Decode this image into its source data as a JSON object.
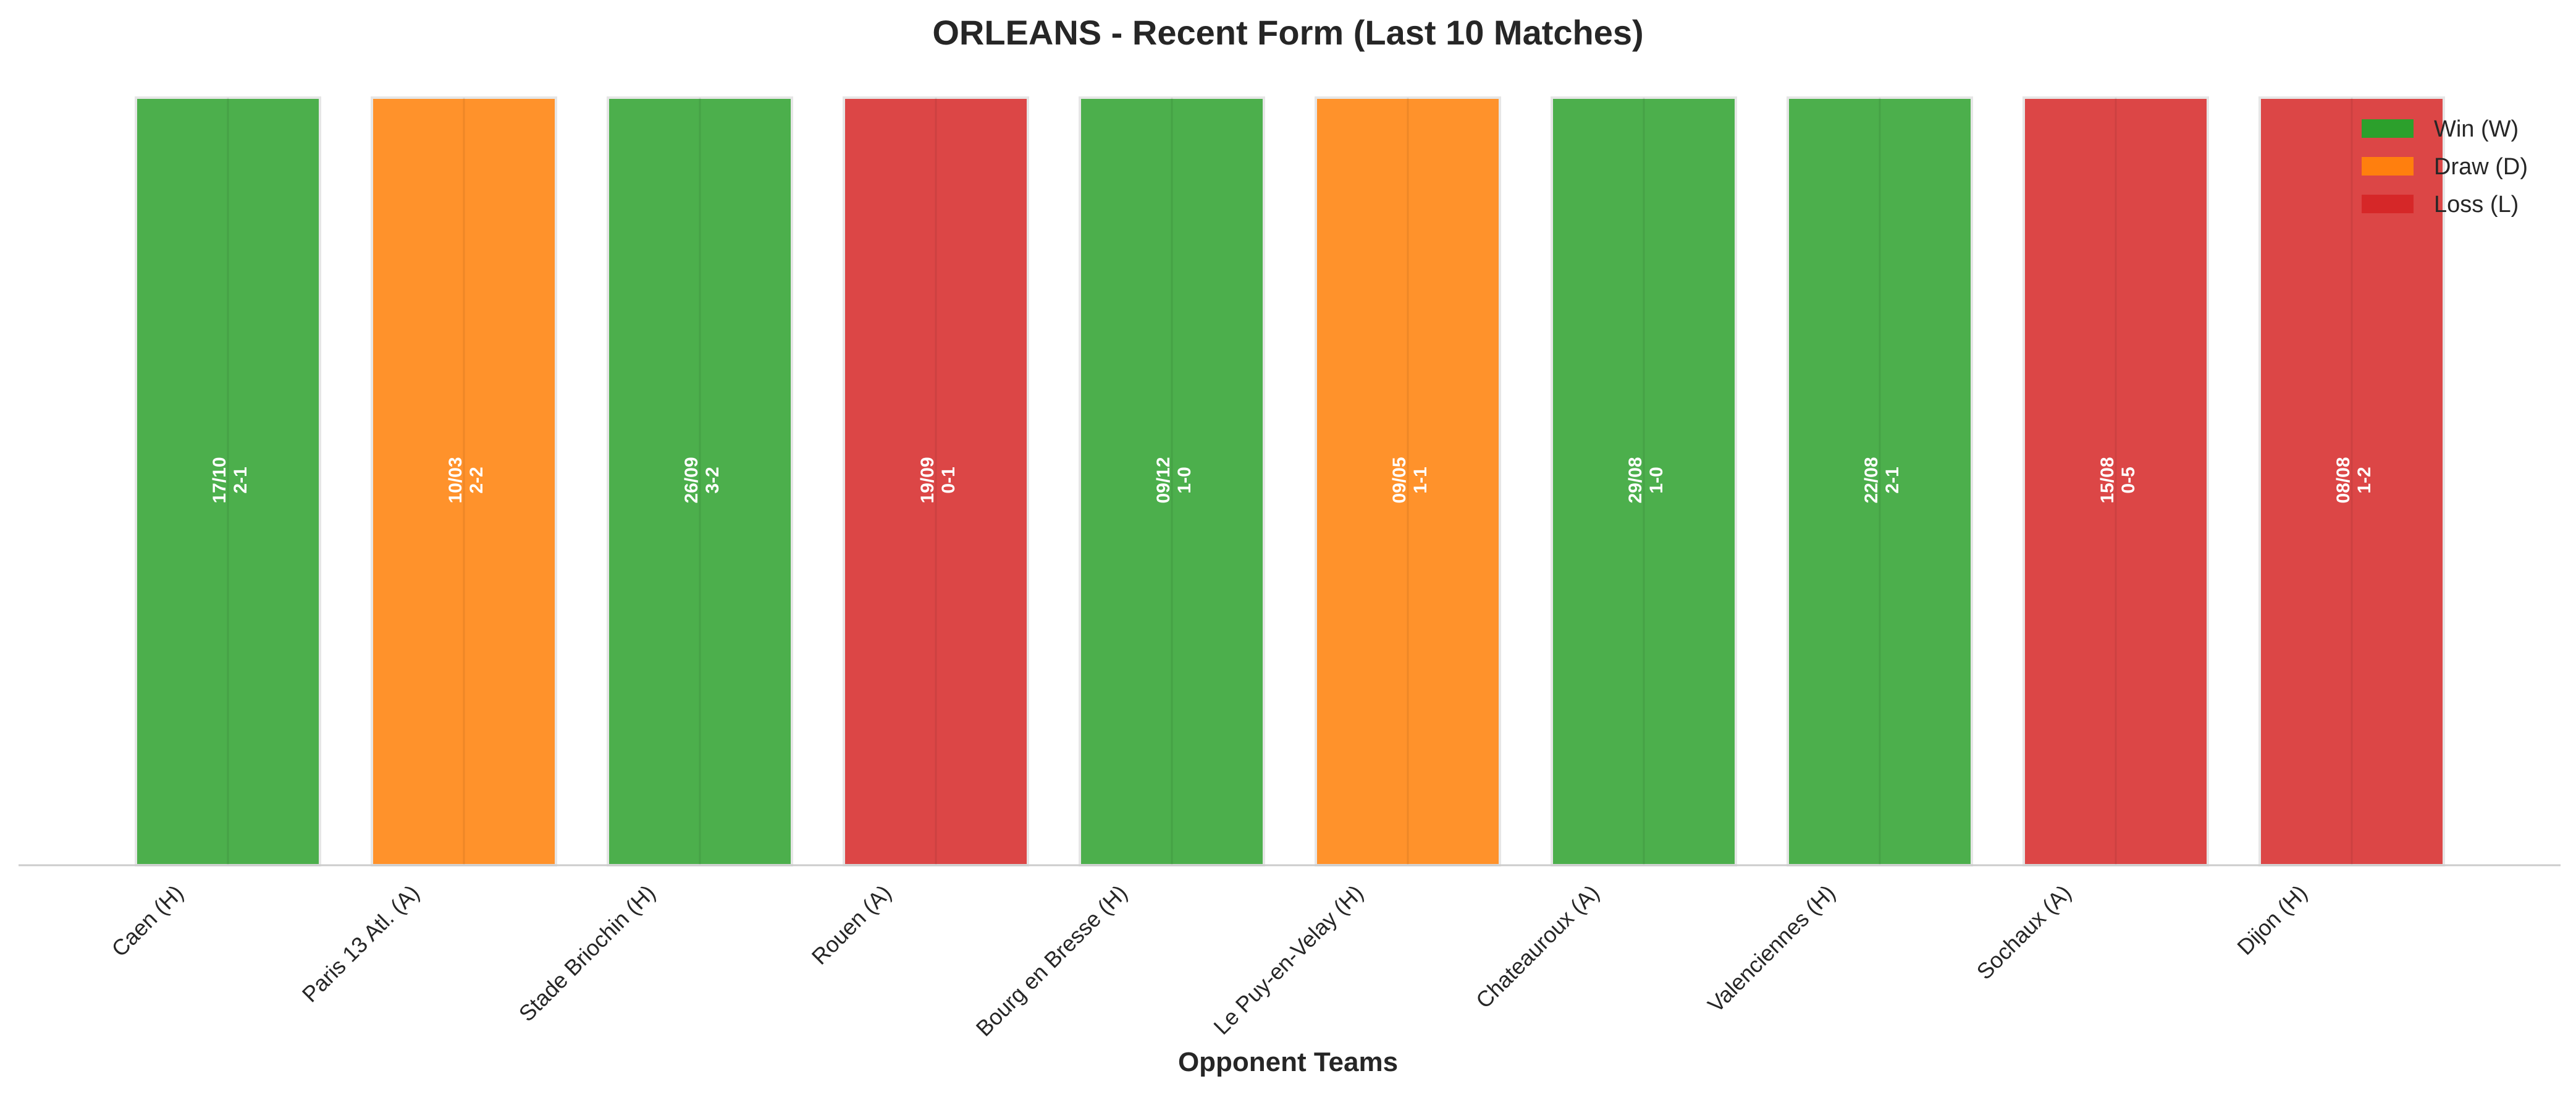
{
  "chart_data": {
    "type": "bar",
    "title": "ORLEANS - Recent Form (Last 10 Matches)",
    "xlabel": "Opponent Teams",
    "ylabel": "",
    "ylim": [
      0,
      1
    ],
    "grid": false,
    "legend_placement": "top-right",
    "categories": [
      "Caen (H)",
      "Paris 13 Atl. (A)",
      "Stade Briochin (H)",
      "Rouen (A)",
      "Bourg en Bresse (H)",
      "Le Puy-en-Velay (H)",
      "Chateauroux (A)",
      "Valenciennes (H)",
      "Sochaux (A)",
      "Dijon (H)"
    ],
    "values": [
      1,
      1,
      1,
      1,
      1,
      1,
      1,
      1,
      1,
      1
    ],
    "results": [
      "W",
      "D",
      "W",
      "L",
      "W",
      "D",
      "W",
      "W",
      "L",
      "L"
    ],
    "dates": [
      "17/10",
      "10/03",
      "26/09",
      "19/09",
      "09/12",
      "09/05",
      "29/08",
      "22/08",
      "15/08",
      "08/08"
    ],
    "scores": [
      "2-1",
      "2-2",
      "3-2",
      "0-1",
      "1-0",
      "1-1",
      "1-0",
      "2-1",
      "0-5",
      "1-2"
    ],
    "legend": [
      {
        "key": "W",
        "label": "Win (W)",
        "color": "#2ca02c"
      },
      {
        "key": "D",
        "label": "Draw (D)",
        "color": "#ff7f0e"
      },
      {
        "key": "L",
        "label": "Loss (L)",
        "color": "#d62728"
      }
    ],
    "colors": {
      "W": "#4caf4c",
      "D": "#ff922b",
      "L": "#dc4646"
    }
  }
}
